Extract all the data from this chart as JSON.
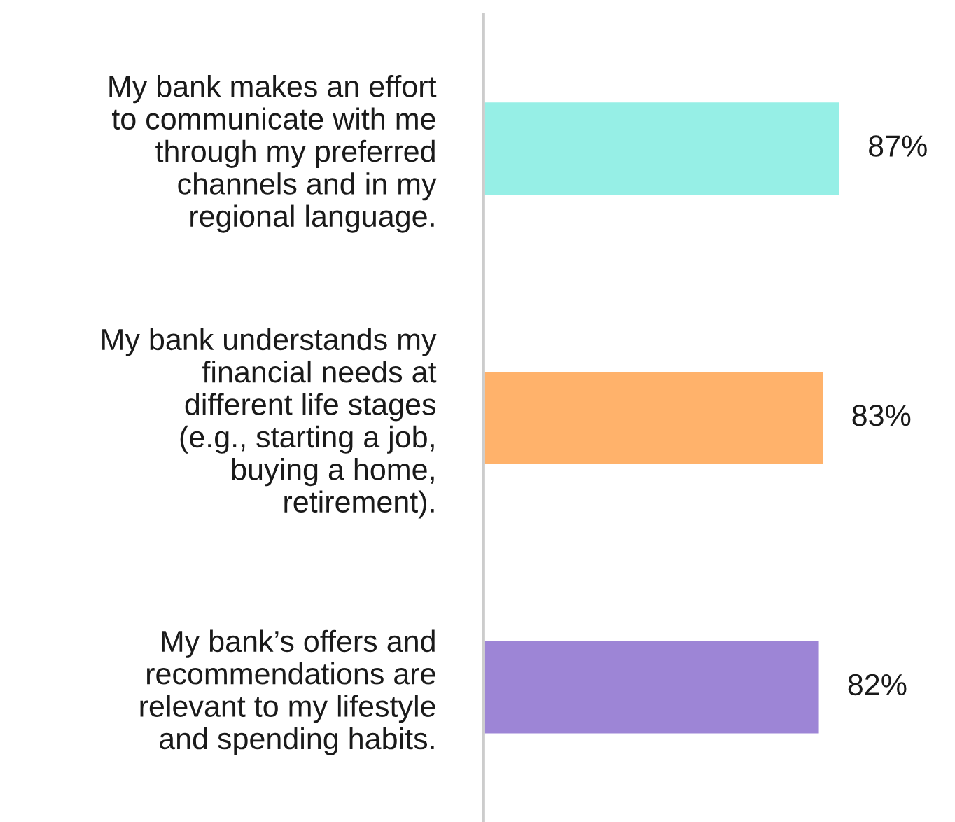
{
  "chart_data": {
    "type": "bar",
    "orientation": "horizontal",
    "categories": [
      "My bank makes an effort\nto communicate with me\nthrough my preferred\nchannels and in my\nregional language.",
      "My bank understands my\nfinancial needs at\ndifferent life stages\n(e.g., starting a job,\nbuying a home,\nretirement).",
      "My bank’s offers and\nrecommendations are\nrelevant to my lifestyle\nand spending habits."
    ],
    "values": [
      87,
      83,
      82
    ],
    "colors": [
      "#96efe6",
      "#ffb26b",
      "#9d85d6"
    ],
    "value_labels": [
      "87%",
      "83%",
      "82%"
    ],
    "tick_labels": "y",
    "grid": false,
    "legend": false
  }
}
